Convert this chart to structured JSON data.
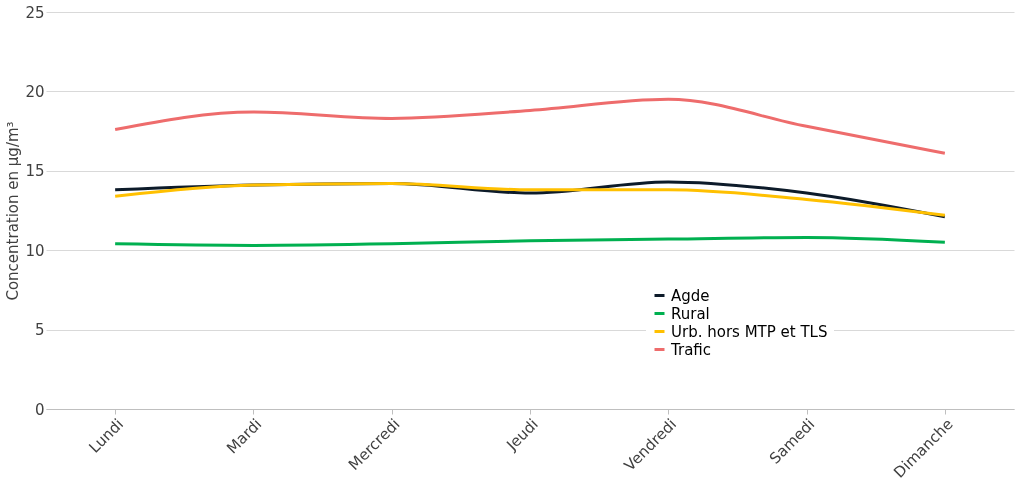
{
  "chart_data": {
    "type": "line",
    "ylabel": "Concentration en µg/m³",
    "categories": [
      "Lundi",
      "Mardi",
      "Mercredi",
      "Jeudi",
      "Vendredi",
      "Samedi",
      "Dimanche"
    ],
    "series": [
      {
        "name": "Agde",
        "color": "#0d1b2a",
        "values": [
          13.8,
          14.1,
          14.2,
          13.6,
          14.3,
          13.6,
          12.1
        ]
      },
      {
        "name": "Rural",
        "color": "#00b050",
        "values": [
          10.4,
          10.3,
          10.4,
          10.6,
          10.7,
          10.8,
          10.5
        ]
      },
      {
        "name": "Urb. hors MTP et TLS",
        "color": "#ffc000",
        "values": [
          13.4,
          14.1,
          14.2,
          13.8,
          13.8,
          13.2,
          12.2
        ]
      },
      {
        "name": "Trafic",
        "color": "#ee6c6c",
        "values": [
          17.6,
          18.7,
          18.3,
          18.8,
          19.5,
          17.8,
          16.1
        ]
      }
    ],
    "ylim": [
      0,
      25
    ],
    "yticks": [
      0,
      5,
      10,
      15,
      20,
      25
    ],
    "grid": "y",
    "legend": "bottom right",
    "marker": "none",
    "line_style": "solid"
  }
}
